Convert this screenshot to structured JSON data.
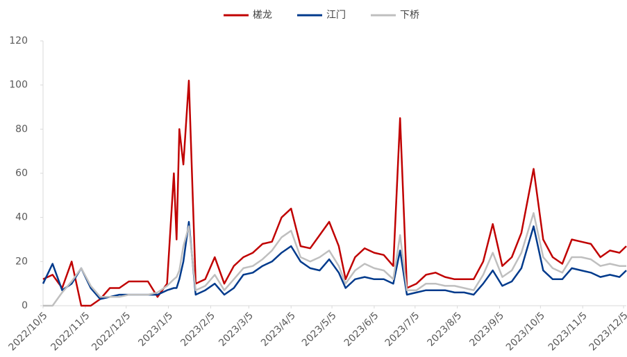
{
  "chart_data": {
    "type": "line",
    "x": [
      "2022/10/5",
      "2022/10/12",
      "2022/10/19",
      "2022/10/26",
      "2022/11/2",
      "2022/11/9",
      "2022/11/16",
      "2022/11/23",
      "2022/11/30",
      "2022/12/7",
      "2022/12/14",
      "2022/12/21",
      "2022/12/28",
      "2023/1/4",
      "2023/1/9",
      "2023/1/11",
      "2023/1/13",
      "2023/1/16",
      "2023/1/20",
      "2023/1/25",
      "2023/2/1",
      "2023/2/8",
      "2023/2/15",
      "2023/2/22",
      "2023/3/1",
      "2023/3/8",
      "2023/3/15",
      "2023/3/22",
      "2023/3/29",
      "2023/4/5",
      "2023/4/12",
      "2023/4/19",
      "2023/4/26",
      "2023/5/3",
      "2023/5/10",
      "2023/5/15",
      "2023/5/22",
      "2023/5/29",
      "2023/6/5",
      "2023/6/12",
      "2023/6/19",
      "2023/6/24",
      "2023/6/29",
      "2023/7/6",
      "2023/7/13",
      "2023/7/20",
      "2023/7/27",
      "2023/8/3",
      "2023/8/10",
      "2023/8/17",
      "2023/8/24",
      "2023/8/31",
      "2023/9/7",
      "2023/9/14",
      "2023/9/21",
      "2023/9/30",
      "2023/10/7",
      "2023/10/14",
      "2023/10/21",
      "2023/10/28",
      "2023/11/4",
      "2023/11/11",
      "2023/11/18",
      "2023/11/25",
      "2023/12/2",
      "2023/12/7"
    ],
    "series": [
      {
        "name": "槎龙",
        "color": "#c00000",
        "values": [
          12,
          14,
          8,
          20,
          0,
          0,
          3,
          8,
          8,
          11,
          11,
          11,
          4,
          10,
          60,
          30,
          80,
          64,
          102,
          10,
          12,
          22,
          10,
          18,
          22,
          24,
          28,
          29,
          40,
          44,
          27,
          26,
          32,
          38,
          27,
          12,
          22,
          26,
          24,
          23,
          18,
          85,
          8,
          10,
          14,
          15,
          13,
          12,
          12,
          12,
          20,
          37,
          18,
          22,
          33,
          62,
          30,
          22,
          19,
          30,
          29,
          28,
          22,
          25,
          24,
          27
        ]
      },
      {
        "name": "江门",
        "color": "#003a8c",
        "values": [
          10,
          19,
          7,
          10,
          17,
          8,
          3,
          4,
          5,
          5,
          5,
          5,
          5,
          7,
          8,
          8,
          12,
          20,
          38,
          5,
          7,
          10,
          5,
          8,
          14,
          15,
          18,
          20,
          24,
          27,
          20,
          17,
          16,
          21,
          15,
          8,
          12,
          13,
          12,
          12,
          10,
          25,
          5,
          6,
          7,
          7,
          7,
          6,
          6,
          5,
          10,
          16,
          9,
          11,
          17,
          36,
          16,
          12,
          12,
          17,
          16,
          15,
          13,
          14,
          13,
          16
        ]
      },
      {
        "name": "下桥",
        "color": "#bfbfbf",
        "values": [
          0,
          0,
          6,
          11,
          17,
          9,
          4,
          4,
          4,
          5,
          5,
          5,
          6,
          9,
          12,
          13,
          16,
          27,
          36,
          7,
          9,
          14,
          7,
          12,
          17,
          18,
          21,
          25,
          31,
          34,
          22,
          20,
          22,
          25,
          18,
          10,
          16,
          19,
          17,
          16,
          12,
          32,
          7,
          7,
          10,
          10,
          9,
          9,
          8,
          7,
          14,
          24,
          13,
          16,
          24,
          42,
          22,
          17,
          15,
          22,
          22,
          21,
          18,
          19,
          18,
          18
        ]
      }
    ],
    "xlim": [
      "2022/10/5",
      "2023/12/7"
    ],
    "xticks": [
      "2022/10/5",
      "2022/11/5",
      "2022/12/5",
      "2023/1/5",
      "2023/2/5",
      "2023/3/5",
      "2023/4/5",
      "2023/5/5",
      "2023/6/5",
      "2023/7/5",
      "2023/8/5",
      "2023/9/5",
      "2023/10/5",
      "2023/11/5",
      "2023/12/5"
    ],
    "ylim": [
      0,
      120
    ],
    "yticks": [
      0,
      20,
      40,
      60,
      80,
      100,
      120
    ],
    "grid": false
  }
}
